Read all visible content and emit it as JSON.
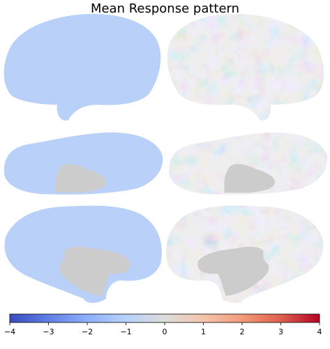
{
  "figure": {
    "title": "Mean Response pattern"
  },
  "panels": [
    {
      "view": "lateral",
      "hemisphere": "left",
      "map": "uniform"
    },
    {
      "view": "lateral",
      "hemisphere": "right",
      "map": "noise"
    },
    {
      "view": "dorsal",
      "hemisphere": "left",
      "map": "uniform"
    },
    {
      "view": "dorsal",
      "hemisphere": "right",
      "map": "noise"
    },
    {
      "view": "medial",
      "hemisphere": "left",
      "map": "uniform"
    },
    {
      "view": "medial",
      "hemisphere": "right",
      "map": "noise"
    }
  ],
  "colors": {
    "uniform_fill": "#b9d0f9",
    "medial_wall": "#cccccc",
    "noise_base": "#dddcdc"
  },
  "colorbar": {
    "colormap": "coolwarm",
    "min": -4,
    "max": 4,
    "ticks": [
      "−4",
      "−3",
      "−2",
      "−1",
      "0",
      "1",
      "2",
      "3",
      "4"
    ]
  }
}
